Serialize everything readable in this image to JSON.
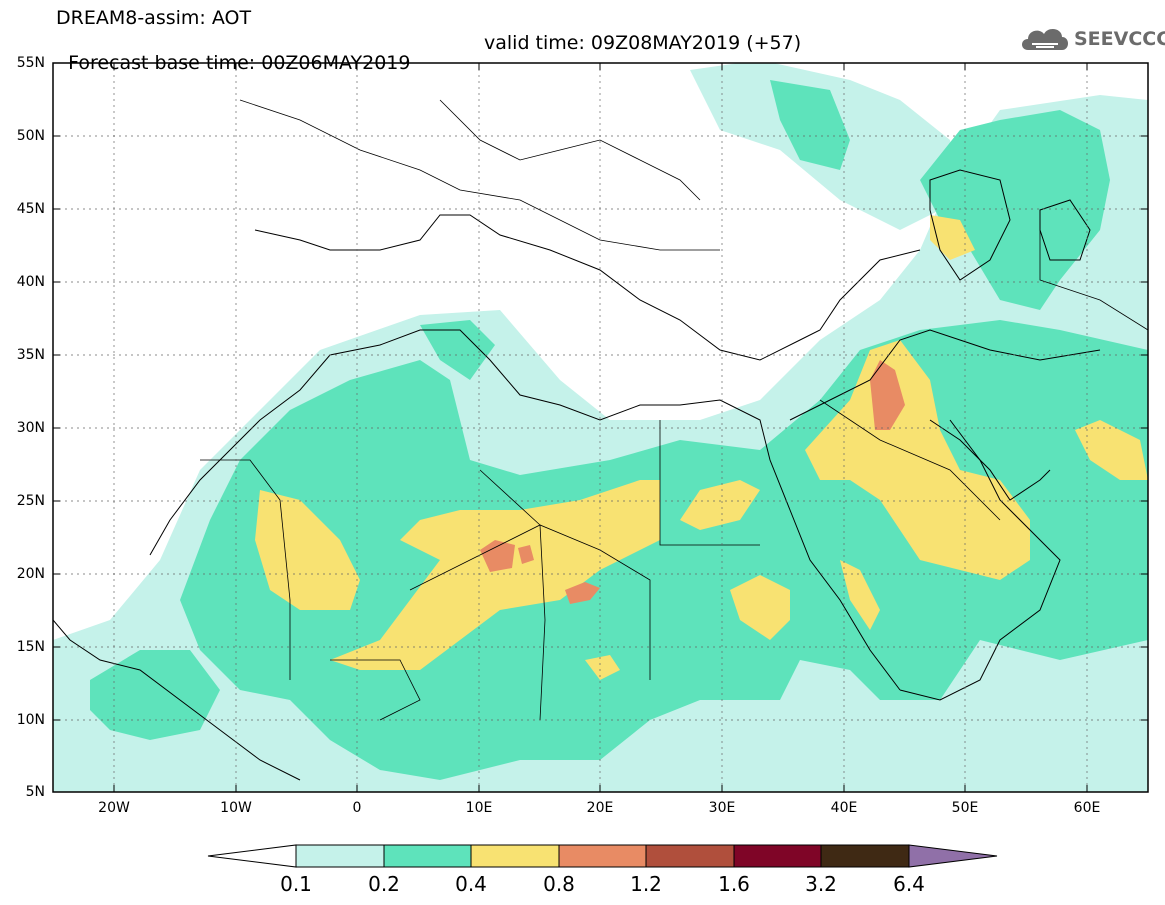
{
  "header": {
    "title_line1": "DREAM8-assim: AOT",
    "base_time": "Forecast base time: 00Z06MAY2019",
    "valid_time": "valid time: 09Z08MAY2019 (+57)"
  },
  "logo": {
    "text": "SEEVCCC",
    "icon": "cloud-icon",
    "color": "#6b6b6b"
  },
  "map": {
    "extent": {
      "lon": [
        -25,
        65
      ],
      "lat": [
        5,
        55
      ]
    },
    "grid": "dashed",
    "lat_labels": [
      "55N",
      "50N",
      "45N",
      "40N",
      "35N",
      "30N",
      "25N",
      "20N",
      "15N",
      "10N",
      "5N"
    ],
    "lon_labels": [
      "20W",
      "10W",
      "0",
      "10E",
      "20E",
      "30E",
      "40E",
      "50E",
      "60E"
    ]
  },
  "colorbar": {
    "labels": [
      "0.1",
      "0.2",
      "0.4",
      "0.8",
      "1.2",
      "1.6",
      "3.2",
      "6.4"
    ],
    "colors": [
      "#ffffff",
      "#c5f2ea",
      "#5ee3bb",
      "#f8e272",
      "#e88b64",
      "#b04f3c",
      "#7f0527",
      "#3f2914",
      "#9070a8"
    ]
  }
}
